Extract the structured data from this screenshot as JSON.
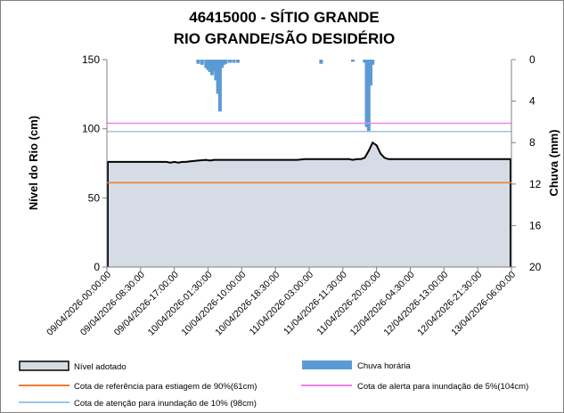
{
  "chart_data": {
    "type": "area",
    "title_line1": "46415000 - SÍTIO GRANDE",
    "title_line2": "RIO GRANDE/SÃO DESIDÉRIO",
    "ylabel": "Nível do Rio (cm)",
    "y2label": "Chuva (mm)",
    "ylim": [
      0,
      150
    ],
    "y2lim": [
      20,
      0
    ],
    "y_ticks": [
      0,
      50,
      100,
      150
    ],
    "y2_ticks": [
      0,
      4,
      8,
      12,
      16,
      20
    ],
    "xlim": [
      "2026-04-09T00:00",
      "2026-04-13T06:00"
    ],
    "x_ticks": [
      {
        "t": "2026-04-09T00:00",
        "label": "09/04/2026-00:00:00"
      },
      {
        "t": "2026-04-09T08:30",
        "label": "09/04/2026-08:30:00"
      },
      {
        "t": "2026-04-09T17:00",
        "label": "09/04/2026-17:00:00"
      },
      {
        "t": "2026-04-10T01:30",
        "label": "10/04/2026-01:30:00"
      },
      {
        "t": "2026-04-10T10:00",
        "label": "10/04/2026-10:00:00"
      },
      {
        "t": "2026-04-10T18:30",
        "label": "10/04/2026-18:30:00"
      },
      {
        "t": "2026-04-11T03:00",
        "label": "11/04/2026-03:00:00"
      },
      {
        "t": "2026-04-11T11:30",
        "label": "11/04/2026-11:30:00"
      },
      {
        "t": "2026-04-11T20:00",
        "label": "11/04/2026-20:00:00"
      },
      {
        "t": "2026-04-12T04:30",
        "label": "12/04/2026-04:30:00"
      },
      {
        "t": "2026-04-12T13:00",
        "label": "12/04/2026-13:00:00"
      },
      {
        "t": "2026-04-12T21:30",
        "label": "12/04/2026-21:30:00"
      },
      {
        "t": "2026-04-13T06:00",
        "label": "13/04/2026-06:00:00"
      }
    ],
    "series": [
      {
        "name": "Nível adotado",
        "kind": "area",
        "color": "#000000",
        "fill": "#D6DCE5",
        "points": [
          [
            "2026-04-09T00:00",
            76
          ],
          [
            "2026-04-09T15:00",
            76
          ],
          [
            "2026-04-09T16:00",
            75.5
          ],
          [
            "2026-04-09T17:00",
            76
          ],
          [
            "2026-04-09T18:00",
            75.5
          ],
          [
            "2026-04-09T19:00",
            76
          ],
          [
            "2026-04-09T20:00",
            76
          ],
          [
            "2026-04-09T21:00",
            76.5
          ],
          [
            "2026-04-09T23:00",
            77
          ],
          [
            "2026-04-10T01:00",
            77.5
          ],
          [
            "2026-04-10T02:00",
            77
          ],
          [
            "2026-04-10T03:00",
            77.5
          ],
          [
            "2026-04-10T12:00",
            77.5
          ],
          [
            "2026-04-11T00:00",
            77.5
          ],
          [
            "2026-04-11T02:00",
            78
          ],
          [
            "2026-04-11T13:00",
            78
          ],
          [
            "2026-04-11T14:00",
            77.5
          ],
          [
            "2026-04-11T15:00",
            78
          ],
          [
            "2026-04-11T16:00",
            78
          ],
          [
            "2026-04-11T17:00",
            79
          ],
          [
            "2026-04-11T18:00",
            84
          ],
          [
            "2026-04-11T19:00",
            90
          ],
          [
            "2026-04-11T20:00",
            88
          ],
          [
            "2026-04-11T21:00",
            82
          ],
          [
            "2026-04-11T22:00",
            79
          ],
          [
            "2026-04-11T23:00",
            78
          ],
          [
            "2026-04-12T02:00",
            78
          ],
          [
            "2026-04-13T06:00",
            78
          ]
        ]
      },
      {
        "name": "Chuva horária",
        "kind": "bar",
        "axis": "y2",
        "color": "#5B9BD5",
        "points": [
          [
            "2026-04-09T23:00",
            0.4
          ],
          [
            "2026-04-10T00:00",
            0.5
          ],
          [
            "2026-04-10T01:00",
            0.8
          ],
          [
            "2026-04-10T01:30",
            1.0
          ],
          [
            "2026-04-10T02:00",
            1.2
          ],
          [
            "2026-04-10T02:30",
            1.5
          ],
          [
            "2026-04-10T03:00",
            1.1
          ],
          [
            "2026-04-10T03:30",
            2.0
          ],
          [
            "2026-04-10T04:00",
            3.3
          ],
          [
            "2026-04-10T04:30",
            5.0
          ],
          [
            "2026-04-10T05:00",
            0.8
          ],
          [
            "2026-04-10T05:30",
            0.5
          ],
          [
            "2026-04-10T06:00",
            0.4
          ],
          [
            "2026-04-10T07:00",
            0.3
          ],
          [
            "2026-04-10T08:00",
            0.3
          ],
          [
            "2026-04-10T09:00",
            0.3
          ],
          [
            "2026-04-11T06:00",
            0.4
          ],
          [
            "2026-04-11T14:00",
            0.2
          ],
          [
            "2026-04-11T17:00",
            0.3
          ],
          [
            "2026-04-11T17:30",
            6.5
          ],
          [
            "2026-04-11T18:00",
            7.0
          ],
          [
            "2026-04-11T18:30",
            2.5
          ],
          [
            "2026-04-11T19:00",
            0.5
          ]
        ]
      },
      {
        "name": "Cota de referência para estiagem de 90%(61cm)",
        "kind": "hline",
        "value": 61,
        "color": "#ED7D31"
      },
      {
        "name": "Cota de alerta para inundação de 5%(104cm)",
        "kind": "hline",
        "value": 104,
        "color": "#EE82EE"
      },
      {
        "name": "Cota de atenção para inundação de 10% (98cm)",
        "kind": "hline",
        "value": 98,
        "color": "#9DC3E6"
      }
    ],
    "grid": false,
    "legend_position": "bottom"
  }
}
